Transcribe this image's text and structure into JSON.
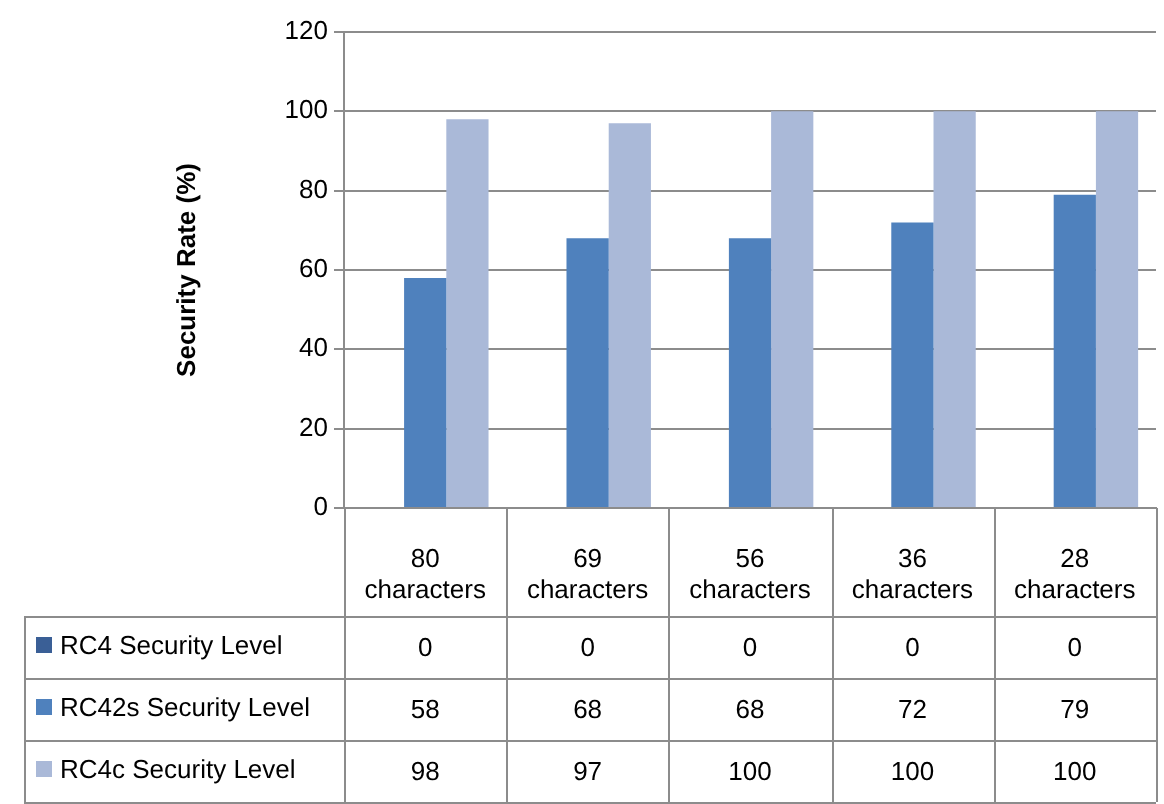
{
  "chart_data": {
    "type": "bar",
    "ylabel": "Security Rate (%)",
    "categories": [
      "80 characters",
      "69 characters",
      "56 characters",
      "36 characters",
      "28 characters"
    ],
    "series": [
      {
        "name": "RC4 Security Level",
        "color": "#3a5f96",
        "values": [
          0,
          0,
          0,
          0,
          0
        ]
      },
      {
        "name": "RC42s Security Level",
        "color": "#4f81bd",
        "values": [
          58,
          68,
          68,
          72,
          79
        ]
      },
      {
        "name": "RC4c Security Level",
        "color": "#aab9d8",
        "values": [
          98,
          97,
          100,
          100,
          100
        ]
      }
    ],
    "ylim": [
      0,
      120
    ],
    "yticks": [
      0,
      20,
      40,
      60,
      80,
      100,
      120
    ],
    "grid": "y",
    "legend": "bottom",
    "data_labels": true
  }
}
